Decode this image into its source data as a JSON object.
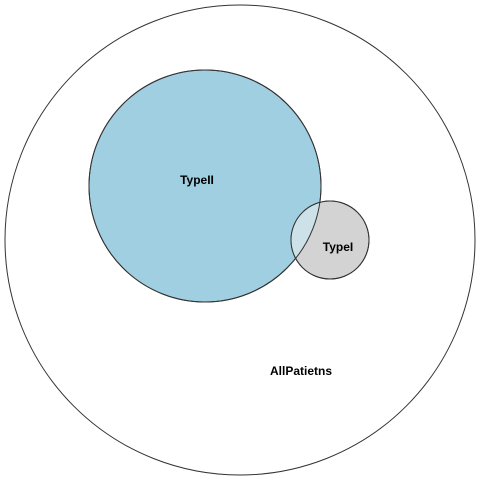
{
  "diagram": {
    "type": "euler",
    "sets": [
      {
        "id": "all",
        "label": "AllPatietns",
        "fill": "#ffffff",
        "stroke": "#333333"
      },
      {
        "id": "type2",
        "label": "TypeII",
        "fill": "#9fcfe1",
        "stroke": "#333333"
      },
      {
        "id": "type1",
        "label": "TypeI",
        "fill": "#d3d3d3",
        "stroke": "#333333"
      }
    ],
    "overlap": {
      "sets": [
        "type2",
        "type1"
      ],
      "fill": "#cde1e8"
    }
  }
}
